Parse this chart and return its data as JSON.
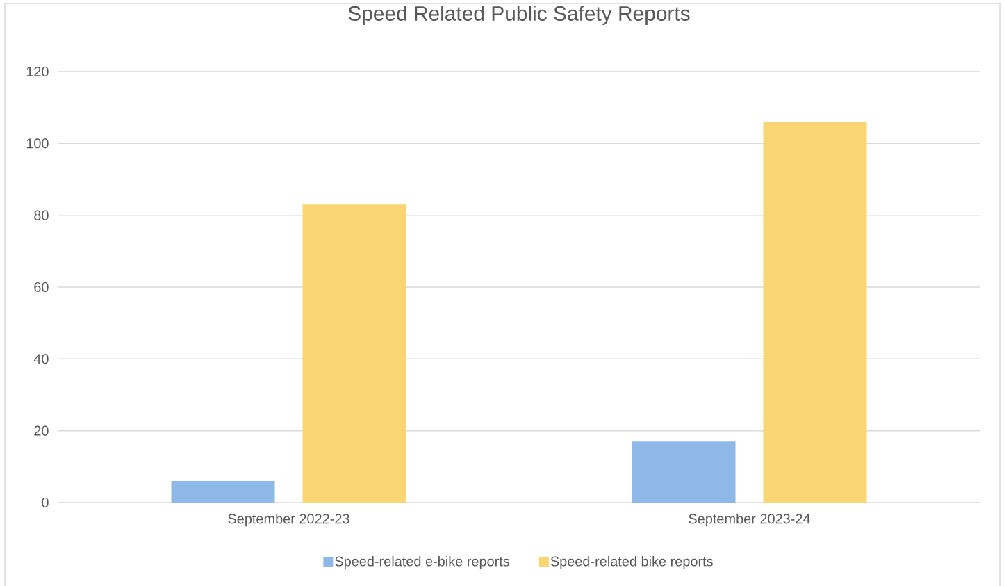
{
  "chart_data": {
    "type": "bar",
    "title": "Speed Related Public Safety Reports",
    "categories": [
      "September 2022-23",
      "September 2023-24"
    ],
    "series": [
      {
        "name": "Speed-related e-bike reports",
        "color": "#8db8e8",
        "values": [
          6,
          17
        ]
      },
      {
        "name": "Speed-related bike reports",
        "color": "#f9d673",
        "values": [
          83,
          106
        ]
      }
    ],
    "ylim": [
      0,
      120
    ],
    "yticks": [
      0,
      20,
      40,
      60,
      80,
      100,
      120
    ],
    "grid": "y",
    "legend": "bottom"
  }
}
